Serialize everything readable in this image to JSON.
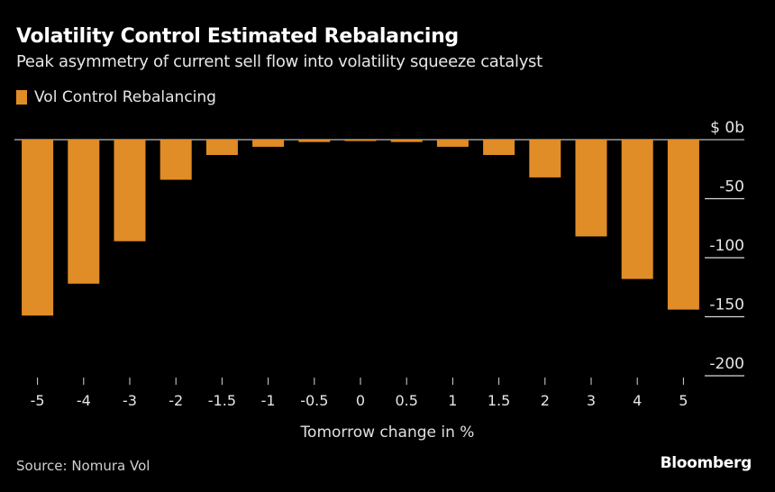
{
  "header": {
    "title": "Volatility Control Estimated Rebalancing",
    "subtitle": "Peak asymmetry of current sell flow into volatility squeeze catalyst"
  },
  "legend": {
    "label": "Vol Control Rebalancing",
    "color": "#e08c27"
  },
  "footer": {
    "source": "Source: Nomura Vol",
    "brand": "Bloomberg"
  },
  "chart_data": {
    "type": "bar",
    "title": "Volatility Control Estimated Rebalancing",
    "subtitle": "Peak asymmetry of current sell flow into volatility squeeze catalyst",
    "xlabel": "Tomorrow change in %",
    "ylabel": "",
    "y_unit_prefix": "$",
    "y_unit_suffix": "b",
    "categories": [
      "-5",
      "-4",
      "-3",
      "-2",
      "-1.5",
      "-1",
      "-0.5",
      "0",
      "0.5",
      "1",
      "1.5",
      "2",
      "3",
      "4",
      "5"
    ],
    "series": [
      {
        "name": "Vol Control Rebalancing",
        "color": "#e08c27",
        "values": [
          -149,
          -122,
          -86,
          -34,
          -13,
          -6,
          -2,
          -1,
          -2,
          -6,
          -13,
          -32,
          -82,
          -118,
          -144
        ]
      }
    ],
    "ylim": [
      -200,
      0
    ],
    "yticks": [
      0,
      -50,
      -100,
      -150,
      -200
    ],
    "ytick_labels": [
      "$ 0b",
      "-50",
      "-100",
      "-150",
      "-200"
    ],
    "grid": false,
    "legend_position": "top-left",
    "y_axis_side": "right"
  }
}
